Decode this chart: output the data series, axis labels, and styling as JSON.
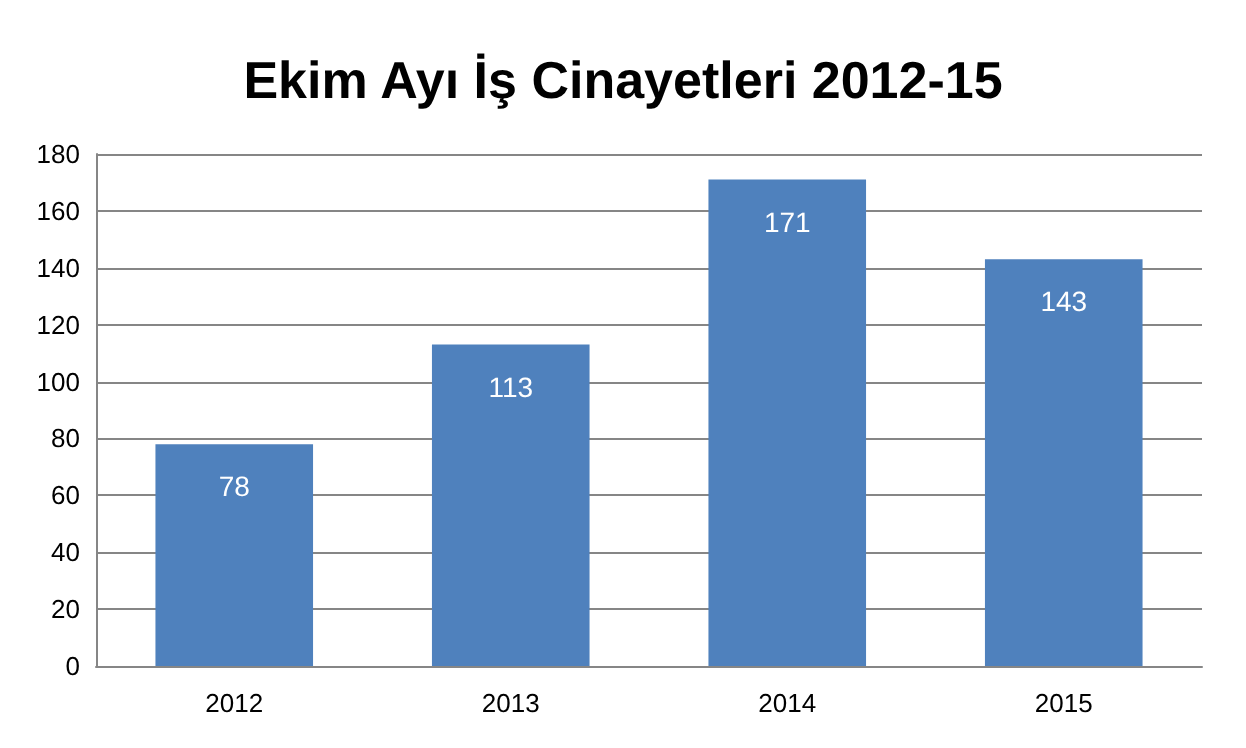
{
  "chart_data": {
    "type": "bar",
    "title": "Ekim Ayı İş Cinayetleri 2012-15",
    "categories": [
      "2012",
      "2013",
      "2014",
      "2015"
    ],
    "values": [
      78,
      113,
      171,
      143
    ],
    "color": "#4f81bd",
    "ylim": [
      0,
      180
    ],
    "yticks": [
      0,
      20,
      40,
      60,
      80,
      100,
      120,
      140,
      160,
      180
    ],
    "grid": "y",
    "data_labels": true
  }
}
